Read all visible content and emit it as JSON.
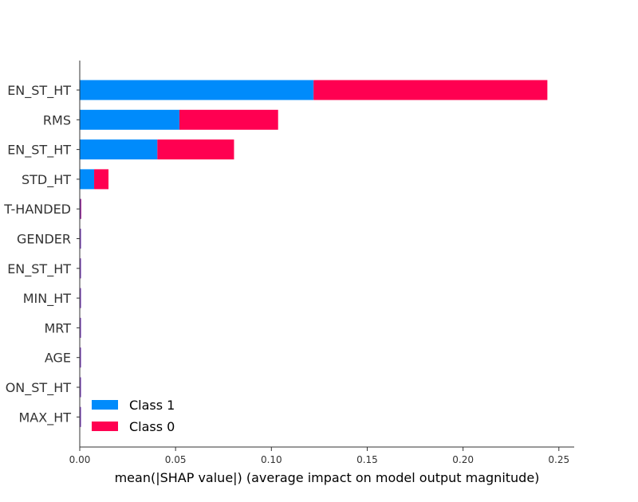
{
  "chart_data": {
    "type": "bar",
    "stacked": true,
    "orientation": "horizontal",
    "categories": [
      "EN_ST_HT",
      "RMS",
      "EN_ST_HT",
      "STD_HT",
      "T-HANDED",
      "GENDER",
      "EN_ST_HT",
      "MIN_HT",
      "MRT",
      "AGE",
      "ON_ST_HT",
      "MAX_HT"
    ],
    "series": [
      {
        "name": "Class 1",
        "color": "#008bfb",
        "values": [
          0.122,
          0.052,
          0.0405,
          0.0075,
          0.0004,
          0.0003,
          0.0003,
          0.0003,
          0.0002,
          0.0002,
          0.0002,
          0.0002
        ]
      },
      {
        "name": "Class 0",
        "color": "#ff0051",
        "values": [
          0.122,
          0.0515,
          0.04,
          0.0075,
          0.0004,
          0.0003,
          0.0003,
          0.0003,
          0.0002,
          0.0002,
          0.0002,
          0.0002
        ]
      }
    ],
    "xlim": [
      0,
      0.258
    ],
    "xticks": [
      0.0,
      0.05,
      0.1,
      0.15,
      0.2,
      0.25
    ],
    "xtick_labels": [
      "0.00",
      "0.05",
      "0.10",
      "0.15",
      "0.20",
      "0.25"
    ],
    "xlabel": "mean(|SHAP value|) (average impact on model output magnitude)",
    "legend": "lower-left",
    "grid": false
  }
}
